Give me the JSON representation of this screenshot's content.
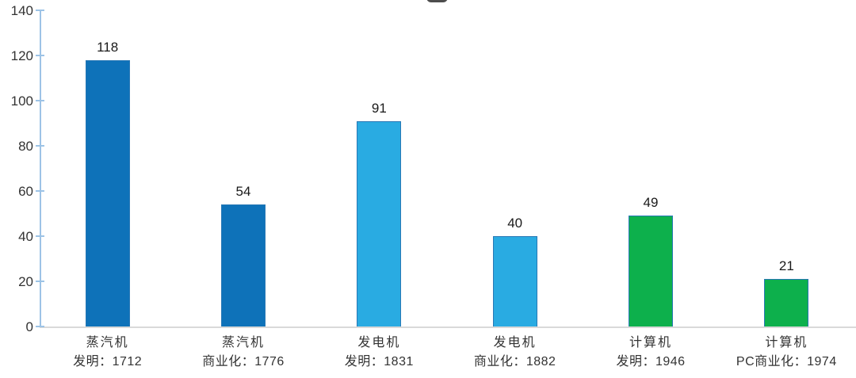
{
  "chart_data": {
    "type": "bar",
    "title": "",
    "categories": [
      "蒸汽机",
      "蒸汽机",
      "发电机",
      "发电机",
      "计算机",
      "计算机"
    ],
    "sub_labels": [
      "发明：1712",
      "商业化：1776",
      "发明：1831",
      "商业化：1882",
      "发明：1946",
      "PC商业化：1974"
    ],
    "values": [
      118,
      54,
      91,
      40,
      49,
      21
    ],
    "value_labels": [
      "118",
      "54",
      "91",
      "40",
      "49",
      "21"
    ],
    "bar_colors": [
      "#0E72B9",
      "#0E72B9",
      "#29ABE2",
      "#29ABE2",
      "#0DB04C",
      "#0DB04C"
    ],
    "bar_border_color": "#2878B5",
    "ylim": [
      0,
      140
    ],
    "yticks": [
      "0",
      "20",
      "40",
      "60",
      "80",
      "100",
      "120",
      "140"
    ],
    "grid": false,
    "legend": false,
    "data_labels": true,
    "axis_color": "#9DC3E6",
    "baseline_color": "#D9D9D9",
    "value_label_color": "#1A1A1A",
    "tick_label_color": "#333333",
    "category_label_color": "#333333"
  }
}
